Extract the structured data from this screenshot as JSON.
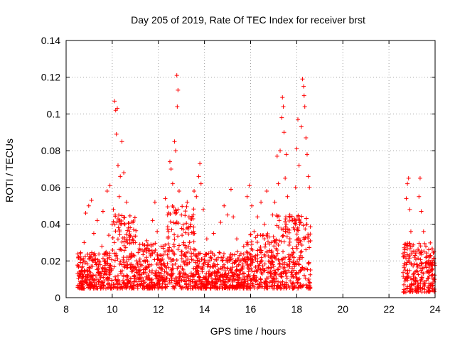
{
  "chart_data": {
    "type": "scatter",
    "title": "Day 205 of 2019, Rate Of TEC Index for receiver brst",
    "xlabel": "GPS time / hours",
    "ylabel": "ROTI / TECUs",
    "xlim": [
      8,
      24
    ],
    "ylim": [
      0,
      0.14
    ],
    "xticks": [
      "8",
      "10",
      "12",
      "14",
      "16",
      "18",
      "20",
      "22",
      "24"
    ],
    "yticks": [
      "0",
      "0.02",
      "0.04",
      "0.06",
      "0.08",
      "0.1",
      "0.12",
      "0.14"
    ],
    "grid": true,
    "marker": "+",
    "series_color": "#ff0000",
    "points": [
      [
        8.55,
        0.012
      ],
      [
        8.62,
        0.024
      ],
      [
        8.7,
        0.008
      ],
      [
        8.78,
        0.03
      ],
      [
        8.85,
        0.046
      ],
      [
        8.9,
        0.015
      ],
      [
        8.98,
        0.05
      ],
      [
        9.05,
        0.022
      ],
      [
        9.1,
        0.053
      ],
      [
        9.15,
        0.01
      ],
      [
        9.2,
        0.035
      ],
      [
        9.3,
        0.018
      ],
      [
        9.35,
        0.042
      ],
      [
        9.45,
        0.012
      ],
      [
        9.55,
        0.028
      ],
      [
        9.6,
        0.047
      ],
      [
        9.7,
        0.02
      ],
      [
        9.78,
        0.058
      ],
      [
        9.85,
        0.034
      ],
      [
        9.9,
        0.061
      ],
      [
        9.95,
        0.015
      ],
      [
        10.0,
        0.04
      ],
      [
        10.05,
        0.048
      ],
      [
        10.1,
        0.107
      ],
      [
        10.15,
        0.102
      ],
      [
        10.18,
        0.089
      ],
      [
        10.22,
        0.103
      ],
      [
        10.25,
        0.072
      ],
      [
        10.3,
        0.055
      ],
      [
        10.35,
        0.066
      ],
      [
        10.42,
        0.085
      ],
      [
        10.5,
        0.068
      ],
      [
        10.55,
        0.04
      ],
      [
        10.62,
        0.052
      ],
      [
        10.7,
        0.038
      ],
      [
        10.8,
        0.022
      ],
      [
        10.9,
        0.015
      ],
      [
        11.0,
        0.03
      ],
      [
        11.2,
        0.012
      ],
      [
        11.35,
        0.025
      ],
      [
        11.5,
        0.031
      ],
      [
        11.6,
        0.018
      ],
      [
        11.75,
        0.042
      ],
      [
        11.85,
        0.052
      ],
      [
        11.95,
        0.036
      ],
      [
        12.05,
        0.02
      ],
      [
        12.2,
        0.028
      ],
      [
        12.3,
        0.054
      ],
      [
        12.4,
        0.045
      ],
      [
        12.5,
        0.074
      ],
      [
        12.55,
        0.07
      ],
      [
        12.62,
        0.062
      ],
      [
        12.7,
        0.085
      ],
      [
        12.75,
        0.08
      ],
      [
        12.8,
        0.121
      ],
      [
        12.85,
        0.113
      ],
      [
        12.82,
        0.104
      ],
      [
        12.9,
        0.058
      ],
      [
        13.0,
        0.045
      ],
      [
        13.1,
        0.03
      ],
      [
        13.25,
        0.052
      ],
      [
        13.4,
        0.04
      ],
      [
        13.55,
        0.058
      ],
      [
        13.65,
        0.055
      ],
      [
        13.75,
        0.066
      ],
      [
        13.8,
        0.073
      ],
      [
        13.85,
        0.062
      ],
      [
        13.95,
        0.048
      ],
      [
        14.1,
        0.032
      ],
      [
        14.25,
        0.022
      ],
      [
        14.4,
        0.035
      ],
      [
        14.55,
        0.018
      ],
      [
        14.7,
        0.041
      ],
      [
        14.85,
        0.05
      ],
      [
        15.0,
        0.045
      ],
      [
        15.15,
        0.059
      ],
      [
        15.25,
        0.044
      ],
      [
        15.4,
        0.032
      ],
      [
        15.55,
        0.015
      ],
      [
        15.7,
        0.028
      ],
      [
        15.85,
        0.055
      ],
      [
        15.95,
        0.061
      ],
      [
        16.05,
        0.05
      ],
      [
        16.15,
        0.036
      ],
      [
        16.3,
        0.044
      ],
      [
        16.45,
        0.052
      ],
      [
        16.6,
        0.04
      ],
      [
        16.7,
        0.058
      ],
      [
        16.8,
        0.033
      ],
      [
        16.95,
        0.045
      ],
      [
        17.05,
        0.052
      ],
      [
        17.15,
        0.077
      ],
      [
        17.2,
        0.062
      ],
      [
        17.28,
        0.08
      ],
      [
        17.35,
        0.098
      ],
      [
        17.38,
        0.109
      ],
      [
        17.42,
        0.104
      ],
      [
        17.45,
        0.09
      ],
      [
        17.5,
        0.065
      ],
      [
        17.55,
        0.078
      ],
      [
        17.6,
        0.055
      ],
      [
        17.7,
        0.045
      ],
      [
        17.85,
        0.038
      ],
      [
        17.95,
        0.06
      ],
      [
        18.0,
        0.081
      ],
      [
        18.05,
        0.097
      ],
      [
        18.1,
        0.072
      ],
      [
        18.2,
        0.093
      ],
      [
        18.25,
        0.119
      ],
      [
        18.3,
        0.115
      ],
      [
        18.32,
        0.11
      ],
      [
        18.35,
        0.104
      ],
      [
        18.4,
        0.087
      ],
      [
        18.45,
        0.078
      ],
      [
        18.5,
        0.066
      ],
      [
        18.55,
        0.06
      ],
      [
        22.75,
        0.054
      ],
      [
        22.8,
        0.062
      ],
      [
        22.85,
        0.065
      ],
      [
        22.9,
        0.048
      ],
      [
        22.95,
        0.036
      ],
      [
        23.0,
        0.028
      ],
      [
        23.1,
        0.022
      ],
      [
        23.2,
        0.018
      ],
      [
        23.3,
        0.055
      ],
      [
        23.35,
        0.065
      ],
      [
        23.4,
        0.047
      ],
      [
        23.5,
        0.036
      ],
      [
        23.6,
        0.028
      ],
      [
        23.75,
        0.022
      ],
      [
        23.85,
        0.018
      ],
      [
        23.95,
        0.025
      ]
    ],
    "dense_regions": [
      {
        "x": [
          8.5,
          10.0
        ],
        "y": [
          0.005,
          0.025
        ]
      },
      {
        "x": [
          10.0,
          11.1
        ],
        "y": [
          0.005,
          0.045
        ]
      },
      {
        "x": [
          11.1,
          12.4
        ],
        "y": [
          0.005,
          0.03
        ]
      },
      {
        "x": [
          12.4,
          13.6
        ],
        "y": [
          0.005,
          0.05
        ]
      },
      {
        "x": [
          13.6,
          15.8
        ],
        "y": [
          0.005,
          0.025
        ]
      },
      {
        "x": [
          15.8,
          17.1
        ],
        "y": [
          0.005,
          0.035
        ]
      },
      {
        "x": [
          17.1,
          18.6
        ],
        "y": [
          0.005,
          0.045
        ]
      },
      {
        "x": [
          22.6,
          24.0
        ],
        "y": [
          0.003,
          0.03
        ]
      }
    ]
  }
}
